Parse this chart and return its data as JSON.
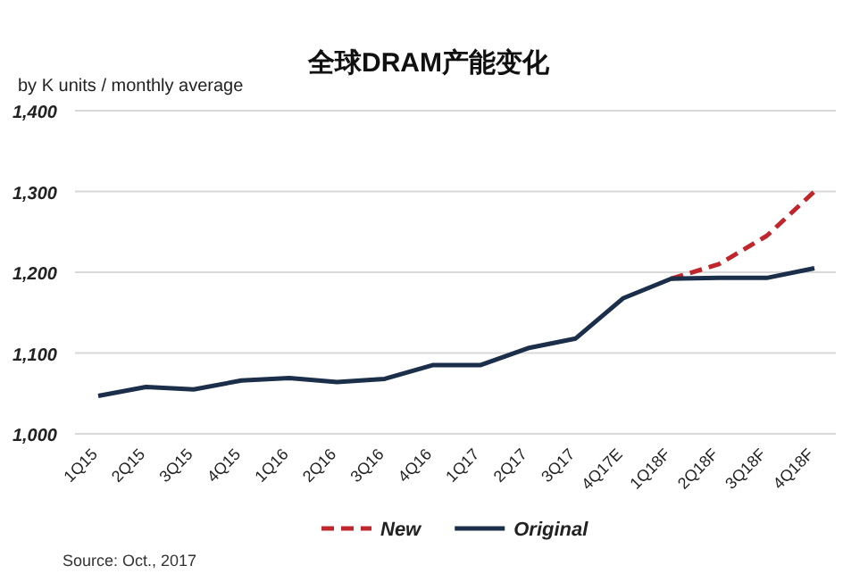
{
  "chart_data": {
    "type": "line",
    "title": "全球DRAM产能变化",
    "ylabel": "by K units / monthly average",
    "categories": [
      "1Q15",
      "2Q15",
      "3Q15",
      "4Q15",
      "1Q16",
      "2Q16",
      "3Q16",
      "4Q16",
      "1Q17",
      "2Q17",
      "3Q17",
      "4Q17E",
      "1Q18F",
      "2Q18F",
      "3Q18F",
      "4Q18F"
    ],
    "series": [
      {
        "name": "New",
        "color": "#c0272d",
        "line_style": "dashed",
        "values": [
          null,
          null,
          null,
          null,
          null,
          null,
          null,
          null,
          null,
          null,
          null,
          null,
          1192,
          1210,
          1245,
          1300
        ]
      },
      {
        "name": "Original",
        "color": "#1b2f4a",
        "line_style": "solid",
        "values": [
          1047,
          1058,
          1055,
          1066,
          1069,
          1064,
          1068,
          1085,
          1085,
          1106,
          1118,
          1168,
          1192,
          1193,
          1193,
          1205
        ]
      }
    ],
    "ylim": [
      1000,
      1400
    ],
    "yticks": [
      {
        "value": 1000,
        "label": "1,000"
      },
      {
        "value": 1100,
        "label": "1,100"
      },
      {
        "value": 1200,
        "label": "1,200"
      },
      {
        "value": 1300,
        "label": "1,300"
      },
      {
        "value": 1400,
        "label": "1,400"
      }
    ],
    "grid": "y",
    "legend": "bottom",
    "marker": "none",
    "annotations": [
      "Source: Oct., 2017"
    ]
  }
}
